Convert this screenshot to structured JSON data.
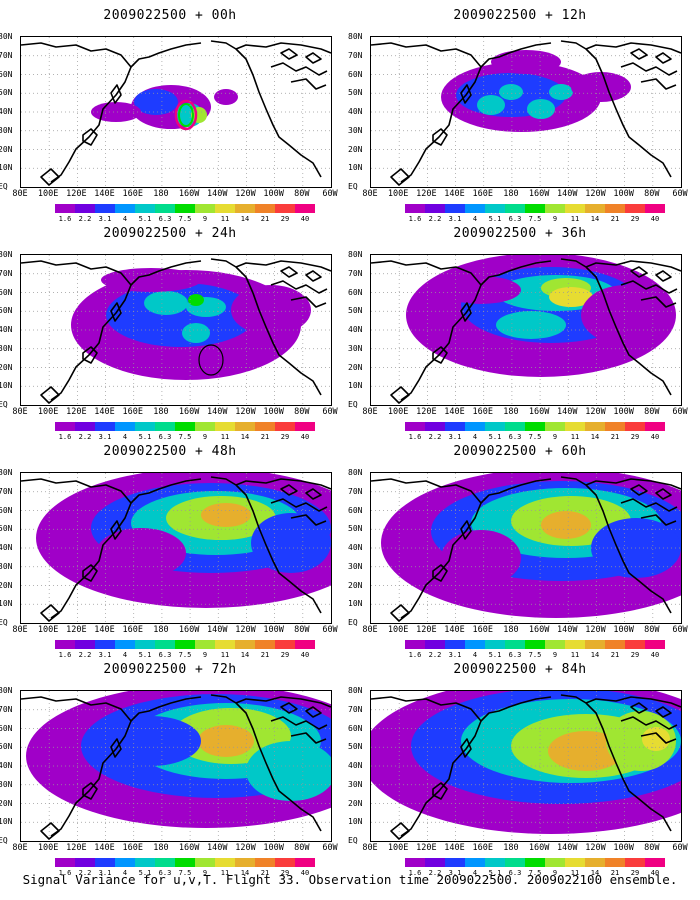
{
  "caption": "Signal Variance for u,v,T. Flight 33. Observation time 2009022500. 2009022100 ensemble.",
  "panels": [
    {
      "title": "2009022500 + 00h",
      "blobs": [
        [
          150,
          70,
          40,
          22,
          0
        ],
        [
          135,
          65,
          22,
          13,
          1
        ],
        [
          168,
          78,
          14,
          12,
          2
        ],
        [
          178,
          78,
          8,
          8,
          4
        ],
        [
          205,
          60,
          12,
          8,
          0
        ],
        [
          95,
          75,
          25,
          10,
          0
        ]
      ],
      "ring": [
        165,
        78,
        10,
        14
      ],
      "circle": null
    },
    {
      "title": "2009022500 + 12h",
      "blobs": [
        [
          150,
          60,
          80,
          35,
          0
        ],
        [
          140,
          58,
          55,
          22,
          1
        ],
        [
          120,
          68,
          14,
          10,
          2
        ],
        [
          170,
          72,
          14,
          10,
          2
        ],
        [
          140,
          55,
          12,
          8,
          2
        ],
        [
          190,
          55,
          12,
          8,
          2
        ],
        [
          230,
          50,
          30,
          15,
          0
        ],
        [
          155,
          25,
          35,
          12,
          0
        ]
      ],
      "ring": null,
      "circle": null
    },
    {
      "title": "2009022500 + 24h",
      "blobs": [
        [
          165,
          70,
          115,
          55,
          0
        ],
        [
          160,
          60,
          75,
          32,
          1
        ],
        [
          145,
          48,
          22,
          12,
          2
        ],
        [
          185,
          52,
          20,
          10,
          2
        ],
        [
          175,
          78,
          14,
          10,
          2
        ],
        [
          175,
          45,
          8,
          6,
          3
        ],
        [
          250,
          55,
          40,
          25,
          0
        ],
        [
          130,
          25,
          50,
          12,
          0
        ]
      ],
      "ring": null,
      "circle": [
        190,
        105,
        12,
        15
      ]
    },
    {
      "title": "2009022500 + 36h",
      "blobs": [
        [
          170,
          60,
          135,
          62,
          0
        ],
        [
          180,
          50,
          90,
          38,
          1
        ],
        [
          185,
          38,
          60,
          18,
          2
        ],
        [
          195,
          33,
          25,
          10,
          4
        ],
        [
          200,
          42,
          22,
          10,
          5
        ],
        [
          160,
          70,
          35,
          14,
          2
        ],
        [
          255,
          60,
          45,
          30,
          0
        ],
        [
          110,
          35,
          40,
          14,
          0
        ]
      ],
      "ring": null,
      "circle": null
    },
    {
      "title": "2009022500 + 48h",
      "blobs": [
        [
          185,
          65,
          170,
          70,
          0
        ],
        [
          190,
          55,
          120,
          45,
          1
        ],
        [
          195,
          50,
          85,
          32,
          2
        ],
        [
          200,
          45,
          55,
          22,
          4
        ],
        [
          205,
          42,
          25,
          12,
          6
        ],
        [
          120,
          80,
          45,
          25,
          0
        ],
        [
          270,
          70,
          40,
          30,
          1
        ]
      ],
      "ring": null,
      "circle": null
    },
    {
      "title": "2009022500 + 60h",
      "blobs": [
        [
          185,
          70,
          175,
          75,
          0
        ],
        [
          190,
          58,
          130,
          50,
          1
        ],
        [
          195,
          50,
          95,
          35,
          2
        ],
        [
          200,
          48,
          60,
          25,
          4
        ],
        [
          195,
          52,
          25,
          14,
          6
        ],
        [
          110,
          85,
          40,
          28,
          0
        ],
        [
          265,
          75,
          45,
          30,
          1
        ]
      ],
      "ring": null,
      "circle": null
    },
    {
      "title": "2009022500 + 72h",
      "blobs": [
        [
          185,
          65,
          180,
          72,
          0
        ],
        [
          195,
          55,
          135,
          52,
          1
        ],
        [
          205,
          50,
          95,
          38,
          2
        ],
        [
          210,
          45,
          60,
          28,
          4
        ],
        [
          205,
          50,
          28,
          16,
          6
        ],
        [
          130,
          50,
          50,
          25,
          1
        ],
        [
          270,
          80,
          45,
          30,
          2
        ]
      ],
      "ring": null,
      "circle": null
    },
    {
      "title": "2009022500 + 84h",
      "blobs": [
        [
          180,
          65,
          190,
          78,
          0
        ],
        [
          190,
          55,
          150,
          58,
          1
        ],
        [
          200,
          50,
          110,
          42,
          2
        ],
        [
          215,
          55,
          75,
          32,
          4
        ],
        [
          215,
          60,
          38,
          20,
          6
        ],
        [
          270,
          50,
          35,
          30,
          4
        ],
        [
          285,
          48,
          14,
          12,
          5
        ]
      ],
      "ring": null,
      "circle": null
    }
  ],
  "latlabels": [
    "80N",
    "70N",
    "60N",
    "50N",
    "40N",
    "30N",
    "20N",
    "10N",
    "EQ"
  ],
  "lonlabels": [
    "80E",
    "100E",
    "120E",
    "140E",
    "160E",
    "180",
    "160W",
    "140W",
    "120W",
    "100W",
    "80W",
    "60W"
  ],
  "colorbar": {
    "colors": [
      "#a000c8",
      "#7000e0",
      "#1e3cff",
      "#0096ff",
      "#00c8c8",
      "#00dc8c",
      "#00dc00",
      "#a0e632",
      "#e6dc32",
      "#e6af2d",
      "#f08228",
      "#fa3c3c",
      "#f00082"
    ],
    "labels": [
      "1.6",
      "2.2",
      "3.1",
      "4",
      "5.1",
      "6.3",
      "7.5",
      "9",
      "11",
      "14",
      "21",
      "29",
      "40"
    ]
  },
  "blob_levels": [
    "#a000c8",
    "#1e3cff",
    "#00c8c8",
    "#00dc00",
    "#a0e632",
    "#e6dc32",
    "#e6af2d"
  ]
}
